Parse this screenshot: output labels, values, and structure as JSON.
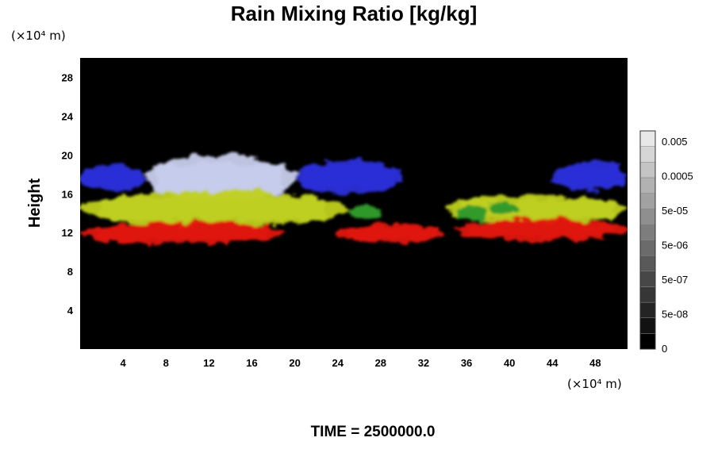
{
  "chart_data": {
    "type": "heatmap",
    "title": "Rain Mixing Ratio [kg/kg]",
    "ylabel": "Height",
    "x_unit": "(×10⁴ m)",
    "y_unit": "(×10⁴ m)",
    "xlim": [
      0,
      51
    ],
    "ylim": [
      0,
      30
    ],
    "xticks": [
      4,
      8,
      12,
      16,
      20,
      24,
      28,
      32,
      36,
      40,
      44,
      48
    ],
    "yticks": [
      4,
      8,
      12,
      16,
      20,
      24,
      28
    ],
    "background_color": "#000000",
    "colorbar": {
      "labels": [
        "0.005",
        "0.0005",
        "5e-05",
        "5e-06",
        "5e-07",
        "5e-08",
        "0"
      ],
      "n_levels": 14
    },
    "layers": [
      {
        "color": "#c8ceec",
        "segments": [
          {
            "x0": 6,
            "x1": 20,
            "y_bottom": 15.2,
            "y_top": 20.0
          }
        ]
      },
      {
        "color": "#2a2ed8",
        "segments": [
          {
            "x0": 0,
            "x1": 6,
            "y_bottom": 16.2,
            "y_top": 19.0
          },
          {
            "x0": 20,
            "x1": 30,
            "y_bottom": 16.0,
            "y_top": 19.5
          },
          {
            "x0": 44,
            "x1": 51,
            "y_bottom": 16.2,
            "y_top": 19.3
          }
        ]
      },
      {
        "color": "#c0d020",
        "segments": [
          {
            "x0": 0,
            "x1": 25,
            "y_bottom": 12.6,
            "y_top": 16.3
          },
          {
            "x0": 34,
            "x1": 51,
            "y_bottom": 13.0,
            "y_top": 15.8
          }
        ]
      },
      {
        "color": "#2f9a2a",
        "segments": [
          {
            "x0": 25,
            "x1": 28,
            "y_bottom": 13.4,
            "y_top": 14.8
          },
          {
            "x0": 35,
            "x1": 38,
            "y_bottom": 13.2,
            "y_top": 14.8
          },
          {
            "x0": 38,
            "x1": 41,
            "y_bottom": 13.8,
            "y_top": 15.2
          }
        ]
      },
      {
        "color": "#e01810",
        "segments": [
          {
            "x0": 0,
            "x1": 19,
            "y_bottom": 10.8,
            "y_top": 13.1
          },
          {
            "x0": 24,
            "x1": 34,
            "y_bottom": 11.0,
            "y_top": 12.9
          },
          {
            "x0": 35,
            "x1": 51,
            "y_bottom": 11.2,
            "y_top": 13.4
          }
        ]
      }
    ]
  },
  "footer": {
    "time_label": "TIME = 2500000.0"
  }
}
